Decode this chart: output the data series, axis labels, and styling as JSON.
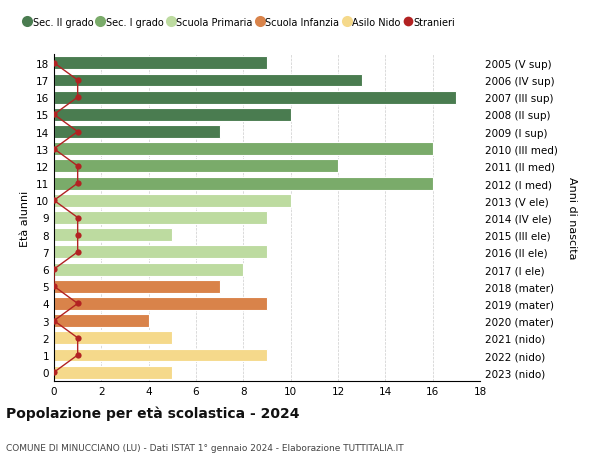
{
  "ages": [
    18,
    17,
    16,
    15,
    14,
    13,
    12,
    11,
    10,
    9,
    8,
    7,
    6,
    5,
    4,
    3,
    2,
    1,
    0
  ],
  "years": [
    "2005 (V sup)",
    "2006 (IV sup)",
    "2007 (III sup)",
    "2008 (II sup)",
    "2009 (I sup)",
    "2010 (III med)",
    "2011 (II med)",
    "2012 (I med)",
    "2013 (V ele)",
    "2014 (IV ele)",
    "2015 (III ele)",
    "2016 (II ele)",
    "2017 (I ele)",
    "2018 (mater)",
    "2019 (mater)",
    "2020 (mater)",
    "2021 (nido)",
    "2022 (nido)",
    "2023 (nido)"
  ],
  "values": [
    9,
    13,
    17,
    10,
    7,
    16,
    12,
    16,
    10,
    9,
    5,
    9,
    8,
    7,
    9,
    4,
    5,
    9,
    5
  ],
  "stranieri_vals": [
    0,
    1,
    1,
    0,
    1,
    0,
    1,
    1,
    0,
    1,
    1,
    1,
    0,
    0,
    1,
    0,
    1,
    1,
    0
  ],
  "bar_colors": [
    "#4a7c50",
    "#4a7c50",
    "#4a7c50",
    "#4a7c50",
    "#4a7c50",
    "#7aab6a",
    "#7aab6a",
    "#7aab6a",
    "#bddba0",
    "#bddba0",
    "#bddba0",
    "#bddba0",
    "#bddba0",
    "#d9834a",
    "#d9834a",
    "#d9834a",
    "#f5d98b",
    "#f5d98b",
    "#f5d98b"
  ],
  "legend_colors": [
    "#4a7c50",
    "#7aab6a",
    "#bddba0",
    "#d9834a",
    "#f5d98b"
  ],
  "legend_labels": [
    "Sec. II grado",
    "Sec. I grado",
    "Scuola Primaria",
    "Scuola Infanzia",
    "Asilo Nido",
    "Stranieri"
  ],
  "ylabel_left": "Età alunni",
  "ylabel_right": "Anni di nascita",
  "xlim": [
    0,
    18
  ],
  "xticks": [
    0,
    2,
    4,
    6,
    8,
    10,
    12,
    14,
    16,
    18
  ],
  "title": "Popolazione per età scolastica - 2024",
  "subtitle": "COMUNE DI MINUCCIANO (LU) - Dati ISTAT 1° gennaio 2024 - Elaborazione TUTTITALIA.IT",
  "bg_color": "#ffffff",
  "grid_color": "#cccccc",
  "stranieri_color": "#b22222"
}
